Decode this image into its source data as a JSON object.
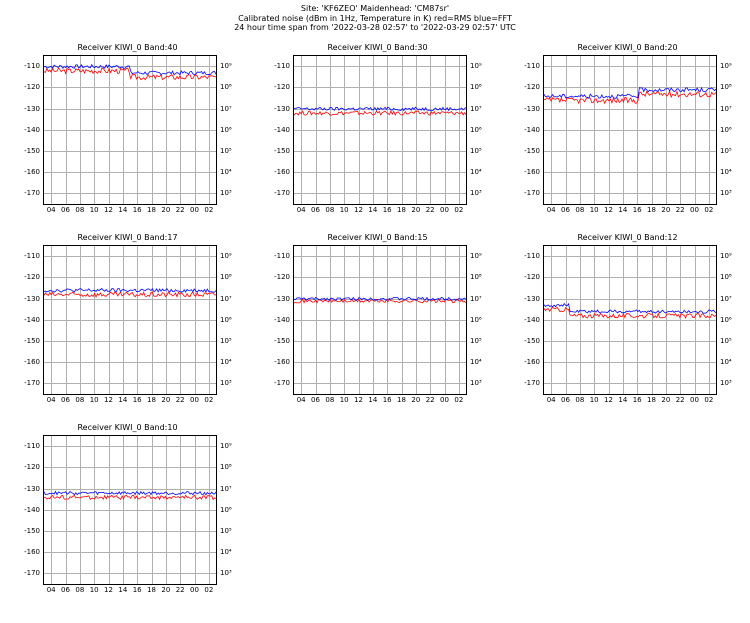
{
  "header": {
    "line1": "Site: 'KF6ZEO' Maidenhead: 'CM87sr'",
    "line2": "Calibrated noise (dBm in 1Hz, Temperature in K) red=RMS blue=FFT",
    "line3": "24 hour time span from '2022-03-28 02:57' to '2022-03-29 02:57' UTC"
  },
  "colors": {
    "rms": "#ff0000",
    "fft": "#0000ff",
    "grid": "#b0b0b0",
    "border": "#000000",
    "bg": "#ffffff"
  },
  "axes": {
    "ylim": [
      -175,
      -105
    ],
    "yticks": [
      -110,
      -120,
      -130,
      -140,
      -150,
      -160,
      -170
    ],
    "y2_labels": [
      "10⁹",
      "10⁸",
      "10⁷",
      "10⁶",
      "10⁵",
      "10⁴",
      "10³"
    ],
    "y2_at_y": [
      -110,
      -120,
      -130,
      -140,
      -150,
      -160,
      -170
    ],
    "xticks": [
      "04",
      "06",
      "08",
      "10",
      "12",
      "14",
      "16",
      "18",
      "20",
      "22",
      "00",
      "02"
    ],
    "xtick_count": 12,
    "tick_fontsize": 7,
    "title_fontsize": 8
  },
  "panels": [
    {
      "title": "Receiver KIWI_0   Band:40",
      "rms_base": -112,
      "fft_base": -110,
      "rms_jitter": 1.3,
      "fft_jitter": 0.9,
      "step_at": 0.5,
      "step_delta": -3
    },
    {
      "title": "Receiver KIWI_0   Band:30",
      "rms_base": -132,
      "fft_base": -130,
      "rms_jitter": 1.0,
      "fft_jitter": 0.8,
      "step_at": null,
      "step_delta": 0
    },
    {
      "title": "Receiver KIWI_0   Band:20",
      "rms_base": -126,
      "fft_base": -124,
      "rms_jitter": 1.4,
      "fft_jitter": 1.0,
      "step_at": 0.55,
      "step_delta": 3
    },
    {
      "title": "Receiver KIWI_0   Band:17",
      "rms_base": -128,
      "fft_base": -126,
      "rms_jitter": 1.2,
      "fft_jitter": 0.9,
      "step_at": null,
      "step_delta": 0
    },
    {
      "title": "Receiver KIWI_0   Band:15",
      "rms_base": -131,
      "fft_base": -130,
      "rms_jitter": 0.9,
      "fft_jitter": 0.7,
      "step_at": null,
      "step_delta": 0
    },
    {
      "title": "Receiver KIWI_0   Band:12",
      "rms_base": -135,
      "fft_base": -133,
      "rms_jitter": 1.1,
      "fft_jitter": 0.8,
      "step_at": 0.15,
      "step_delta": -3
    },
    {
      "title": "Receiver KIWI_0   Band:10",
      "rms_base": -134,
      "fft_base": -132,
      "rms_jitter": 1.0,
      "fft_jitter": 0.8,
      "step_at": null,
      "step_delta": 0
    }
  ]
}
